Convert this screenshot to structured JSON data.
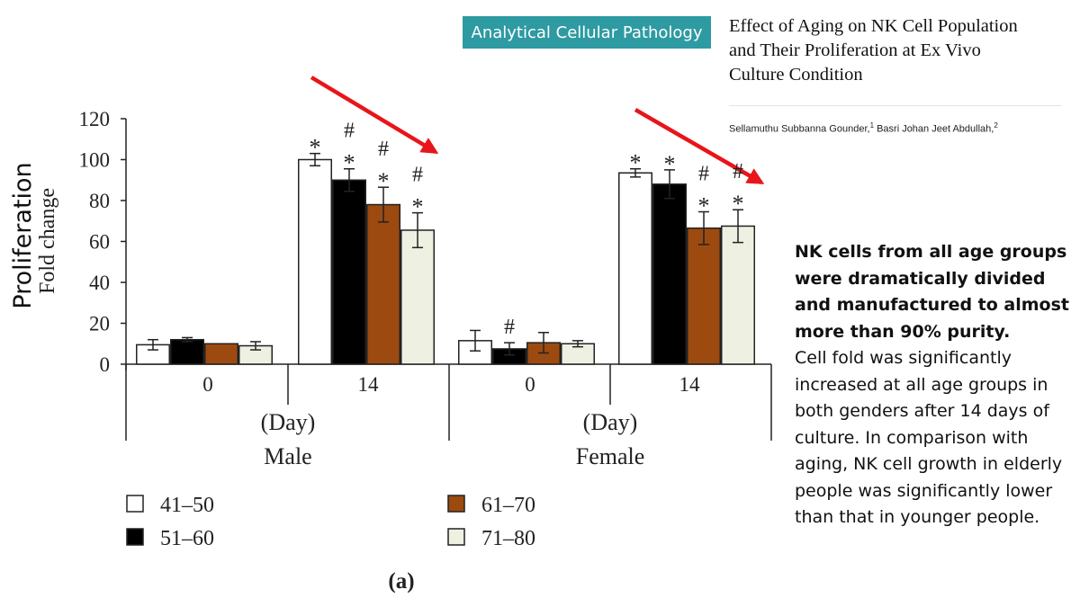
{
  "journal": "Analytical Cellular Pathology",
  "paper": {
    "title": "Effect of Aging on NK Cell Population\nand Their Proliferation at Ex Vivo\nCulture Condition",
    "author1": "Sellamuthu Subbanna Gounder,",
    "author1_sup": "1",
    "author2": " Basri Johan Jeet Abdullah,",
    "author2_sup": "2"
  },
  "note": {
    "bold": "NK cells from all age groups were dramatically divided and manufactured to almost more than 90% purity.",
    "body": "Cell fold was significantly increased at all age groups in both genders after 14 days of culture. In comparison with aging, NK cell growth in elderly people was significantly lower than that in younger people."
  },
  "colors": {
    "badge": "#2e9aa2",
    "arrow": "#e8151a",
    "series": [
      "#ffffff",
      "#000000",
      "#9c4a10",
      "#eef1e2"
    ]
  },
  "chart_data": {
    "type": "bar",
    "panel_label": "(a)",
    "ylabel": "Proliferation",
    "ylabel_inner": "Fold change",
    "ylim": [
      0,
      120
    ],
    "yticks": [
      0,
      20,
      40,
      60,
      80,
      100,
      120
    ],
    "unit_label": "(Day)",
    "groups": [
      {
        "name": "Male",
        "days": [
          {
            "day": "0",
            "values": [
              9.5,
              12,
              10,
              9
            ],
            "errors": [
              2.5,
              1,
              0,
              2
            ],
            "marks": [
              "",
              "",
              "",
              ""
            ]
          },
          {
            "day": "14",
            "values": [
              100,
              90,
              78,
              65.5
            ],
            "errors": [
              3,
              5.5,
              8.5,
              8.5
            ],
            "marks": [
              "*",
              "#*",
              "#*",
              "#*"
            ]
          }
        ]
      },
      {
        "name": "Female",
        "days": [
          {
            "day": "0",
            "values": [
              11.5,
              7.5,
              10.5,
              10
            ],
            "errors": [
              5,
              3,
              5,
              1.5
            ],
            "marks": [
              "",
              "#",
              "",
              ""
            ]
          },
          {
            "day": "14",
            "values": [
              93.5,
              88,
              66.5,
              67.5
            ],
            "errors": [
              2,
              7,
              8,
              8
            ],
            "marks": [
              "*",
              "*",
              "#*",
              "#*"
            ]
          }
        ]
      }
    ],
    "legend": [
      "41–50",
      "51–60",
      "61–70",
      "71–80"
    ],
    "grid": false,
    "legend_position": "bottom"
  }
}
